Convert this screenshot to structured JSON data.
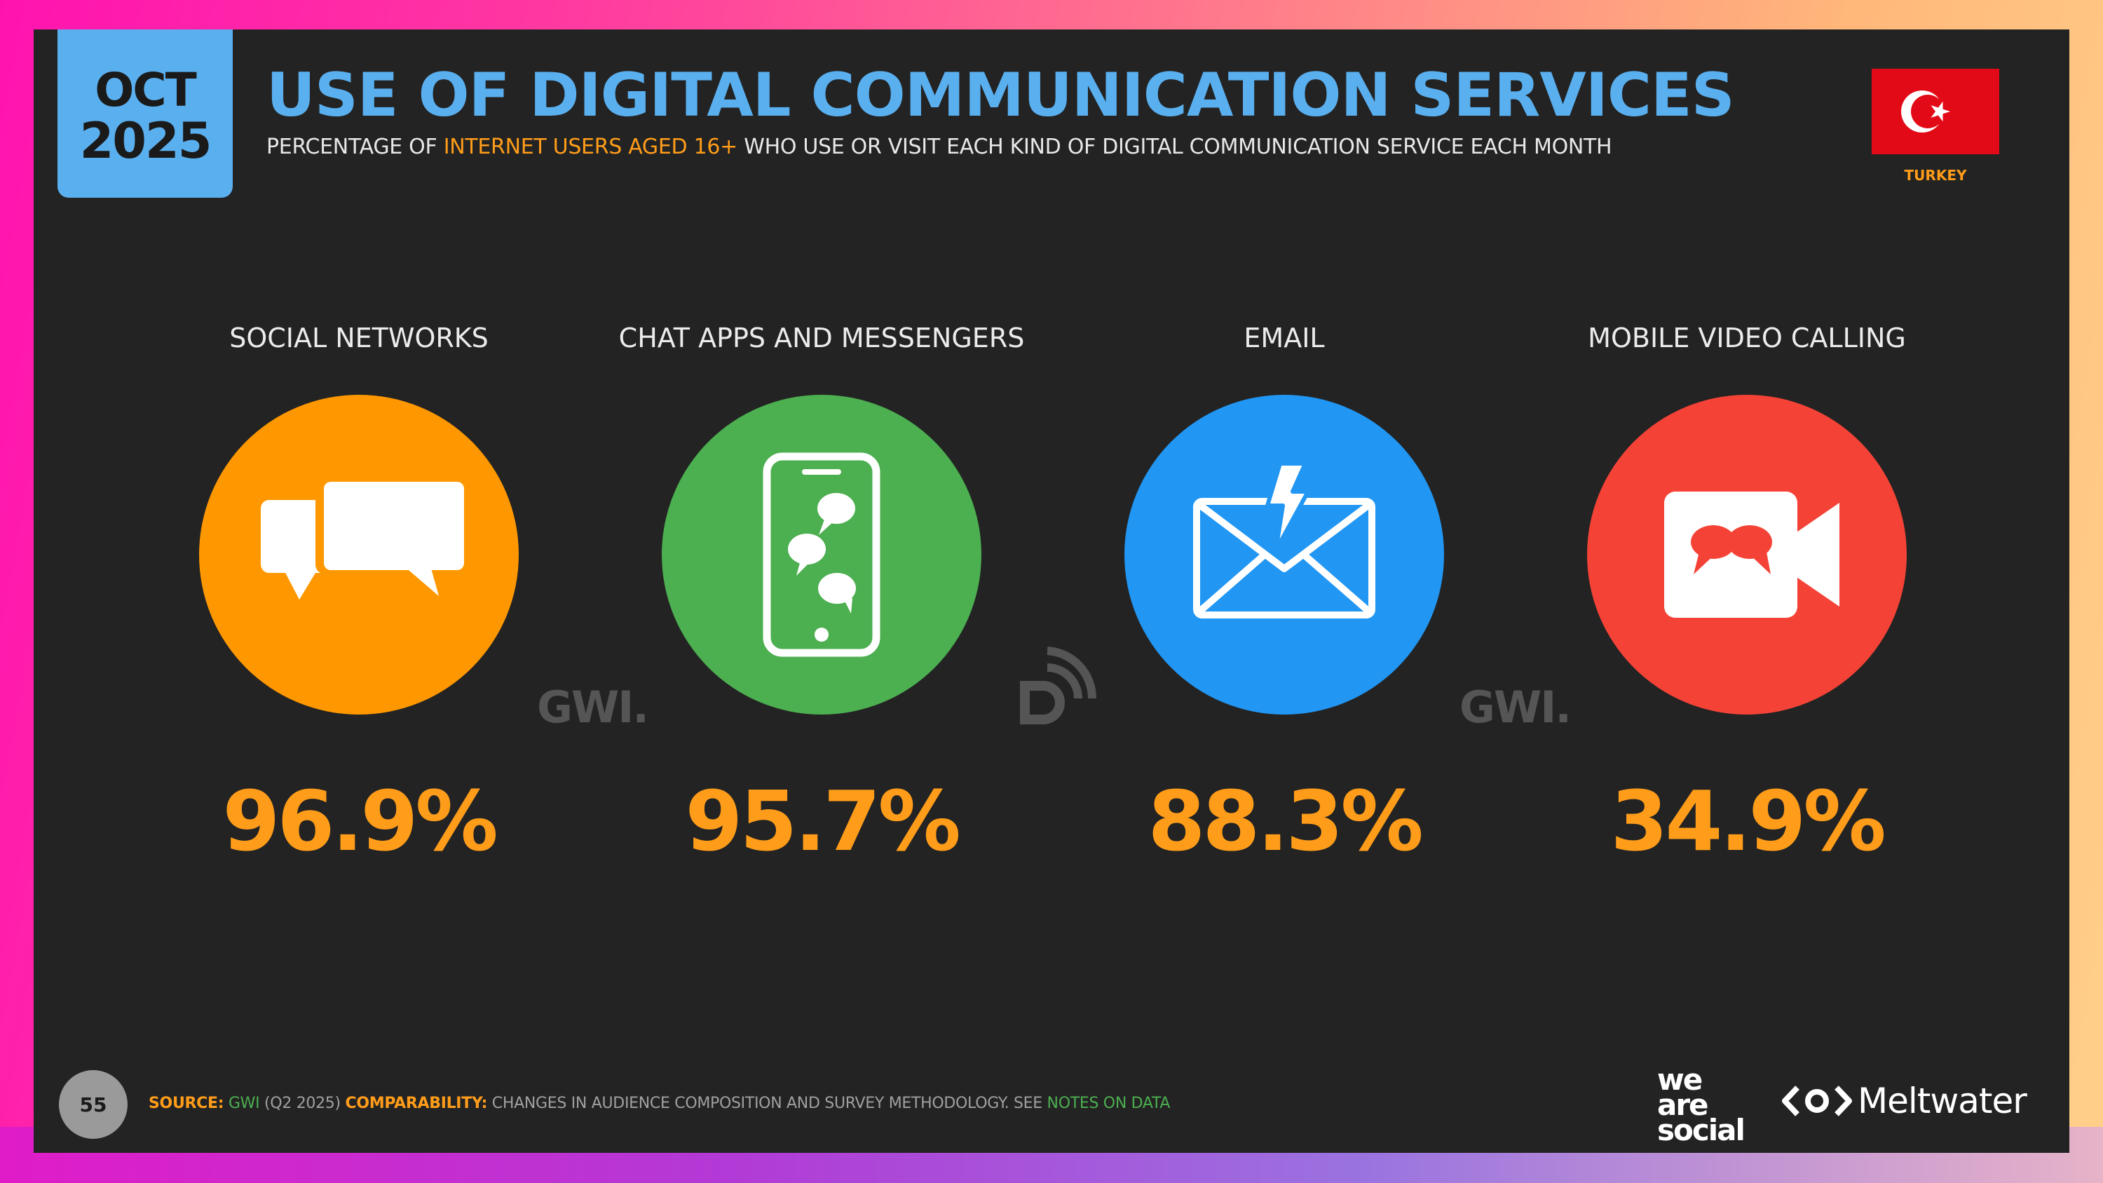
{
  "header": {
    "month": "OCT",
    "year": "2025",
    "title": "USE OF DIGITAL COMMUNICATION SERVICES",
    "subtitle_pre": "PERCENTAGE OF ",
    "subtitle_highlight": "INTERNET USERS AGED 16+",
    "subtitle_post": " WHO USE OR VISIT EACH KIND OF DIGITAL COMMUNICATION SERVICE EACH MONTH",
    "country": "TURKEY"
  },
  "chart_data": {
    "type": "bar",
    "categories": [
      "SOCIAL NETWORKS",
      "CHAT APPS AND MESSENGERS",
      "EMAIL",
      "MOBILE VIDEO CALLING"
    ],
    "values": [
      96.9,
      95.7,
      88.3,
      34.9
    ],
    "value_labels": [
      "96.9%",
      "95.7%",
      "88.3%",
      "34.9%"
    ],
    "colors": [
      "#ff9800",
      "#4caf50",
      "#2196f3",
      "#f44336"
    ],
    "icons": [
      "speech-bubbles-icon",
      "phone-chat-icon",
      "email-alert-icon",
      "video-chat-icon"
    ]
  },
  "watermarks": [
    "GWI.",
    "GWI."
  ],
  "footer": {
    "page_number": "55",
    "source_label": "SOURCE:",
    "source_name": "GWI",
    "source_period": " (Q2 2025) ",
    "comparability_label": "COMPARABILITY:",
    "comparability_text": " CHANGES IN AUDIENCE COMPOSITION AND SURVEY METHODOLOGY. SEE ",
    "notes_link": "NOTES ON DATA",
    "brand_was": "we are social",
    "brand_was_lines": [
      "we",
      "are",
      "social"
    ],
    "brand_meltwater": "Meltwater"
  }
}
